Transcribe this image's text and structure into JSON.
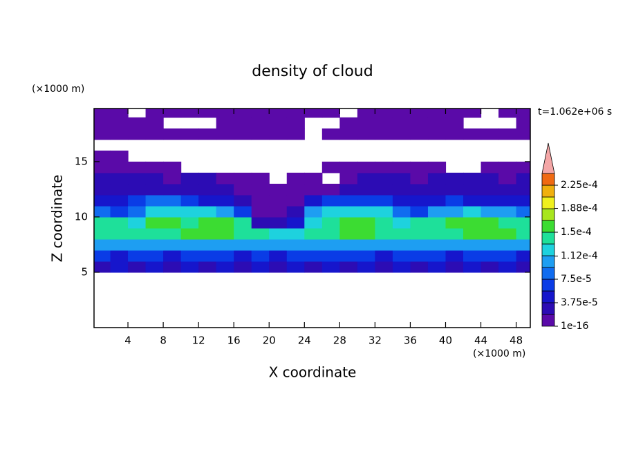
{
  "chart_data": {
    "type": "contour",
    "title": "density of cloud",
    "x_label": "X coordinate",
    "y_label": "Z coordinate",
    "x_units": "(×1000 m)",
    "y_units": "(×1000 m)",
    "annotation": "t=1.062e+06 s",
    "xlim": [
      0,
      49.6
    ],
    "ylim": [
      0,
      19.8
    ],
    "xticks": [
      4,
      8,
      12,
      16,
      20,
      24,
      28,
      32,
      36,
      40,
      44,
      48
    ],
    "yticks": [
      5,
      10,
      15
    ],
    "x": [
      1,
      3,
      5,
      7,
      9,
      11,
      13,
      15,
      17,
      19,
      21,
      23,
      25,
      27,
      29,
      31,
      33,
      35,
      37,
      39,
      41,
      43,
      45,
      47,
      49
    ],
    "y": [
      0.5,
      1.5,
      2.5,
      3.5,
      4.5,
      5.5,
      6.5,
      7.5,
      8.5,
      9.5,
      10.5,
      11.5,
      12.5,
      13.5,
      14.5,
      15.5,
      16.5,
      17.5,
      18.5,
      19.5
    ],
    "z": [
      [
        null,
        null,
        null,
        null,
        null,
        null,
        null,
        null,
        null,
        null,
        null,
        null,
        null,
        null,
        null,
        null,
        null,
        null,
        null,
        null,
        null,
        null,
        null,
        null,
        null
      ],
      [
        null,
        null,
        null,
        null,
        null,
        null,
        null,
        null,
        null,
        null,
        null,
        null,
        null,
        null,
        null,
        null,
        null,
        null,
        null,
        null,
        null,
        null,
        null,
        null,
        null
      ],
      [
        null,
        null,
        null,
        null,
        null,
        null,
        null,
        null,
        null,
        null,
        null,
        null,
        null,
        null,
        null,
        null,
        null,
        null,
        null,
        null,
        null,
        null,
        null,
        null,
        null
      ],
      [
        null,
        null,
        null,
        null,
        null,
        null,
        null,
        null,
        null,
        null,
        null,
        null,
        null,
        null,
        null,
        null,
        null,
        null,
        null,
        null,
        null,
        null,
        null,
        null,
        null
      ],
      [
        null,
        null,
        null,
        null,
        null,
        null,
        null,
        null,
        null,
        null,
        null,
        null,
        null,
        null,
        null,
        null,
        null,
        null,
        null,
        null,
        null,
        null,
        null,
        null,
        null
      ],
      [
        3.5e-05,
        4e-05,
        3.5e-05,
        4e-05,
        3.5e-05,
        4e-05,
        3.5e-05,
        4e-05,
        3.5e-05,
        4e-05,
        3.5e-05,
        4e-05,
        3.5e-05,
        4e-05,
        3.5e-05,
        4e-05,
        3.5e-05,
        4e-05,
        3.5e-05,
        4e-05,
        3.5e-05,
        4e-05,
        3.5e-05,
        4e-05,
        3.5e-05
      ],
      [
        6e-05,
        5.5e-05,
        6.5e-05,
        6e-05,
        5.5e-05,
        6e-05,
        6.5e-05,
        6e-05,
        5.5e-05,
        6e-05,
        5.5e-05,
        6e-05,
        6.5e-05,
        6e-05,
        6.5e-05,
        6e-05,
        5.5e-05,
        6e-05,
        6.5e-05,
        6e-05,
        5.5e-05,
        6e-05,
        6.5e-05,
        6e-05,
        5.5e-05
      ],
      [
        0.0001,
        0.000105,
        9.5e-05,
        0.00011,
        0.0001,
        0.000105,
        0.00011,
        0.0001,
        9.5e-05,
        0.0001,
        0.000105,
        9.5e-05,
        0.0001,
        0.000105,
        0.00011,
        0.000105,
        0.0001,
        9.5e-05,
        0.0001,
        0.000105,
        0.00011,
        0.0001,
        0.000105,
        0.00011,
        0.0001
      ],
      [
        0.000135,
        0.00014,
        0.000135,
        0.000145,
        0.00014,
        0.00015,
        0.000155,
        0.000155,
        0.000145,
        0.000135,
        0.00013,
        0.00013,
        0.00014,
        0.000145,
        0.000155,
        0.000155,
        0.000145,
        0.00014,
        0.000135,
        0.00014,
        0.000145,
        0.000155,
        0.00015,
        0.000155,
        0.00014
      ],
      [
        0.000145,
        0.00014,
        0.00013,
        0.000155,
        0.00015,
        0.000145,
        0.000155,
        0.00015,
        0.000135,
        3e-05,
        2e-05,
        4e-05,
        0.00013,
        0.000145,
        0.000155,
        0.00015,
        0.000145,
        0.00013,
        0.00014,
        0.000145,
        0.00015,
        0.000155,
        0.00015,
        0.000145,
        0.000135
      ],
      [
        8e-05,
        7e-05,
        9e-05,
        0.00012,
        0.000125,
        0.000115,
        0.00012,
        0.00011,
        7e-05,
        1e-05,
        8e-06,
        2e-05,
        0.00011,
        0.00012,
        0.000125,
        0.00012,
        0.000115,
        9e-05,
        7e-05,
        0.0001,
        0.00011,
        0.000115,
        0.000105,
        0.00011,
        9e-05
      ],
      [
        4e-05,
        5e-05,
        7e-05,
        9e-05,
        8e-05,
        6e-05,
        5e-05,
        5e-05,
        3e-05,
        5e-06,
        5e-06,
        8e-06,
        4e-05,
        6e-05,
        7e-05,
        7e-05,
        6e-05,
        4e-05,
        5e-05,
        5e-05,
        6e-05,
        5e-05,
        4e-05,
        5e-05,
        4e-05
      ],
      [
        2.5e-05,
        3e-05,
        3e-05,
        3.5e-05,
        3e-05,
        3e-05,
        2.5e-05,
        2e-05,
        5e-06,
        5e-06,
        5e-06,
        5e-06,
        5e-06,
        5e-06,
        2.5e-05,
        3e-05,
        3e-05,
        2.5e-05,
        3e-05,
        3e-05,
        3e-05,
        2.5e-05,
        3e-05,
        3e-05,
        2.5e-05
      ],
      [
        2e-05,
        2e-05,
        2.5e-05,
        2e-05,
        1.5e-05,
        2e-05,
        2e-05,
        5e-06,
        5e-06,
        5e-06,
        null,
        5e-06,
        5e-06,
        null,
        5e-06,
        2e-05,
        2e-05,
        2e-05,
        1.5e-05,
        2e-05,
        2e-05,
        2e-05,
        2e-05,
        1.5e-05,
        2e-05
      ],
      [
        8e-06,
        8e-06,
        8e-06,
        8e-06,
        8e-06,
        null,
        null,
        null,
        null,
        null,
        null,
        null,
        null,
        8e-06,
        8e-06,
        8e-06,
        8e-06,
        8e-06,
        8e-06,
        8e-06,
        null,
        null,
        8e-06,
        8e-06,
        8e-06
      ],
      [
        6e-06,
        6e-06,
        null,
        null,
        null,
        null,
        null,
        null,
        null,
        null,
        null,
        null,
        null,
        null,
        null,
        null,
        null,
        null,
        null,
        null,
        null,
        null,
        null,
        null,
        null
      ],
      [
        null,
        null,
        null,
        null,
        null,
        null,
        null,
        null,
        null,
        null,
        null,
        null,
        null,
        null,
        null,
        null,
        null,
        null,
        null,
        null,
        null,
        null,
        null,
        null,
        null
      ],
      [
        5e-06,
        5e-06,
        5e-06,
        5e-06,
        5e-06,
        5e-06,
        5e-06,
        5e-06,
        5e-06,
        5e-06,
        5e-06,
        5e-06,
        null,
        5e-06,
        5e-06,
        5e-06,
        5e-06,
        5e-06,
        5e-06,
        5e-06,
        5e-06,
        5e-06,
        5e-06,
        5e-06,
        5e-06
      ],
      [
        5e-06,
        5e-06,
        5e-06,
        5e-06,
        null,
        null,
        null,
        5e-06,
        5e-06,
        5e-06,
        5e-06,
        5e-06,
        null,
        null,
        5e-06,
        5e-06,
        5e-06,
        5e-06,
        5e-06,
        5e-06,
        5e-06,
        null,
        null,
        null,
        5e-06
      ],
      [
        5e-06,
        5e-06,
        null,
        5e-06,
        5e-06,
        5e-06,
        5e-06,
        5e-06,
        5e-06,
        5e-06,
        5e-06,
        5e-06,
        5e-06,
        5e-06,
        null,
        5e-06,
        5e-06,
        5e-06,
        5e-06,
        5e-06,
        5e-06,
        5e-06,
        null,
        5e-06,
        5e-06
      ]
    ],
    "colorbar": {
      "levels": [
        1e-16,
        1.875e-05,
        3.75e-05,
        5.625e-05,
        7.5e-05,
        9.375e-05,
        0.0001125,
        0.00013125,
        0.00015,
        0.00016875,
        0.0001875,
        0.00020625,
        0.000225,
        0.00024375
      ],
      "colors": [
        "#5a0aa8",
        "#2c0cb4",
        "#1616cc",
        "#0a3ce6",
        "#106cf0",
        "#1e9ef2",
        "#1ed2de",
        "#1ee09a",
        "#3cdc32",
        "#a8e61e",
        "#f0f01e",
        "#f0b00e",
        "#f06a12"
      ],
      "extend_color": "#f4a6a6",
      "ticks": [
        1e-16,
        {
          "value": 3.75e-05,
          "label": "3.75e-5"
        },
        {
          "value": 7.5e-05,
          "label": "7.5e-5"
        },
        {
          "value": 0.000112,
          "label": "1.12e-4"
        },
        {
          "value": 0.00015,
          "label": "1.5e-4"
        },
        {
          "value": 0.000188,
          "label": "1.88e-4"
        },
        {
          "value": 0.000225,
          "label": "2.25e-4"
        }
      ]
    }
  }
}
